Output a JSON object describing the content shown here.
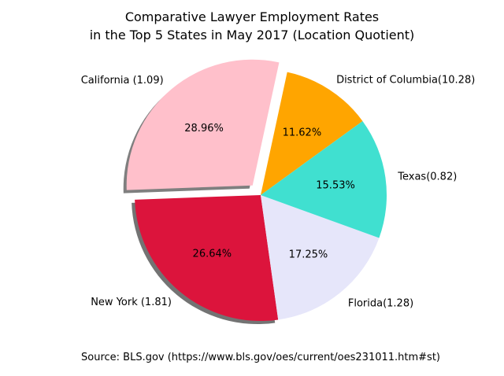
{
  "chart_data": {
    "type": "pie",
    "title_lines": [
      "Comparative Lawyer Employment Rates",
      "in the Top 5 States in May 2017 (Location Quotient)"
    ],
    "source": "Source: BLS.gov (https://www.bls.gov/oes/current/oes231011.htm#st)",
    "slices": [
      {
        "label": "District of Columbia(10.28)",
        "percent": "11.62%",
        "value": 11.62,
        "color": "#FFA500",
        "explode": false
      },
      {
        "label": "California (1.09)",
        "percent": "28.96%",
        "value": 28.96,
        "color": "#FFC0CB",
        "explode": true
      },
      {
        "label": "New York (1.81)",
        "percent": "26.64%",
        "value": 26.64,
        "color": "#DC143C",
        "explode": false
      },
      {
        "label": "Florida(1.28)",
        "percent": "17.25%",
        "value": 17.25,
        "color": "#E6E6FA",
        "explode": false
      },
      {
        "label": "Texas(0.82)",
        "percent": "15.53%",
        "value": 15.53,
        "color": "#40E0D0",
        "explode": false
      }
    ],
    "start_angle_deg": 36,
    "shadow": true
  }
}
